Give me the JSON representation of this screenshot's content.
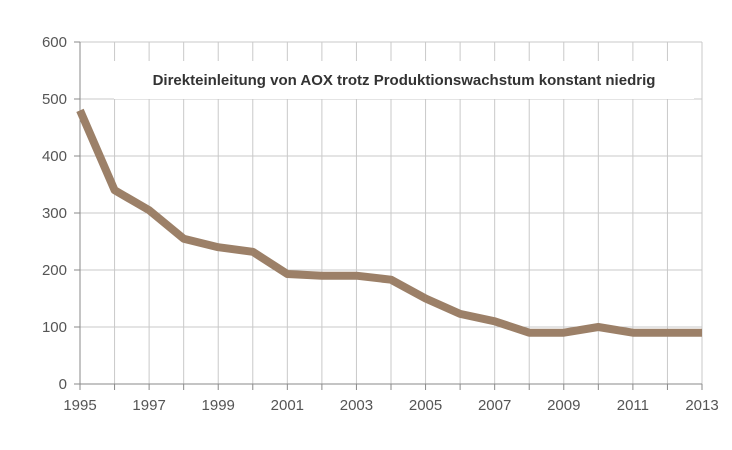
{
  "chart_data": {
    "type": "line",
    "title": "Direkteinleitung von AOX trotz Produktionswachstum konstant niedrig",
    "xlabel": "",
    "ylabel": "",
    "xlim": [
      1995,
      2013
    ],
    "ylim": [
      0,
      600
    ],
    "y_ticks": [
      0,
      100,
      200,
      300,
      400,
      500,
      600
    ],
    "x_ticks": [
      1995,
      1997,
      1999,
      2001,
      2003,
      2005,
      2007,
      2009,
      2011,
      2013
    ],
    "grid": true,
    "legend": "none",
    "series": [
      {
        "color": "#9C8068",
        "x": [
          1995,
          1996,
          1997,
          1998,
          1999,
          2000,
          2001,
          2002,
          2003,
          2004,
          2005,
          2006,
          2007,
          2008,
          2009,
          2010,
          2011,
          2012,
          2013
        ],
        "values": [
          480,
          340,
          305,
          255,
          240,
          232,
          193,
          190,
          190,
          183,
          150,
          123,
          110,
          90,
          90,
          100,
          90,
          90,
          90
        ]
      }
    ]
  }
}
